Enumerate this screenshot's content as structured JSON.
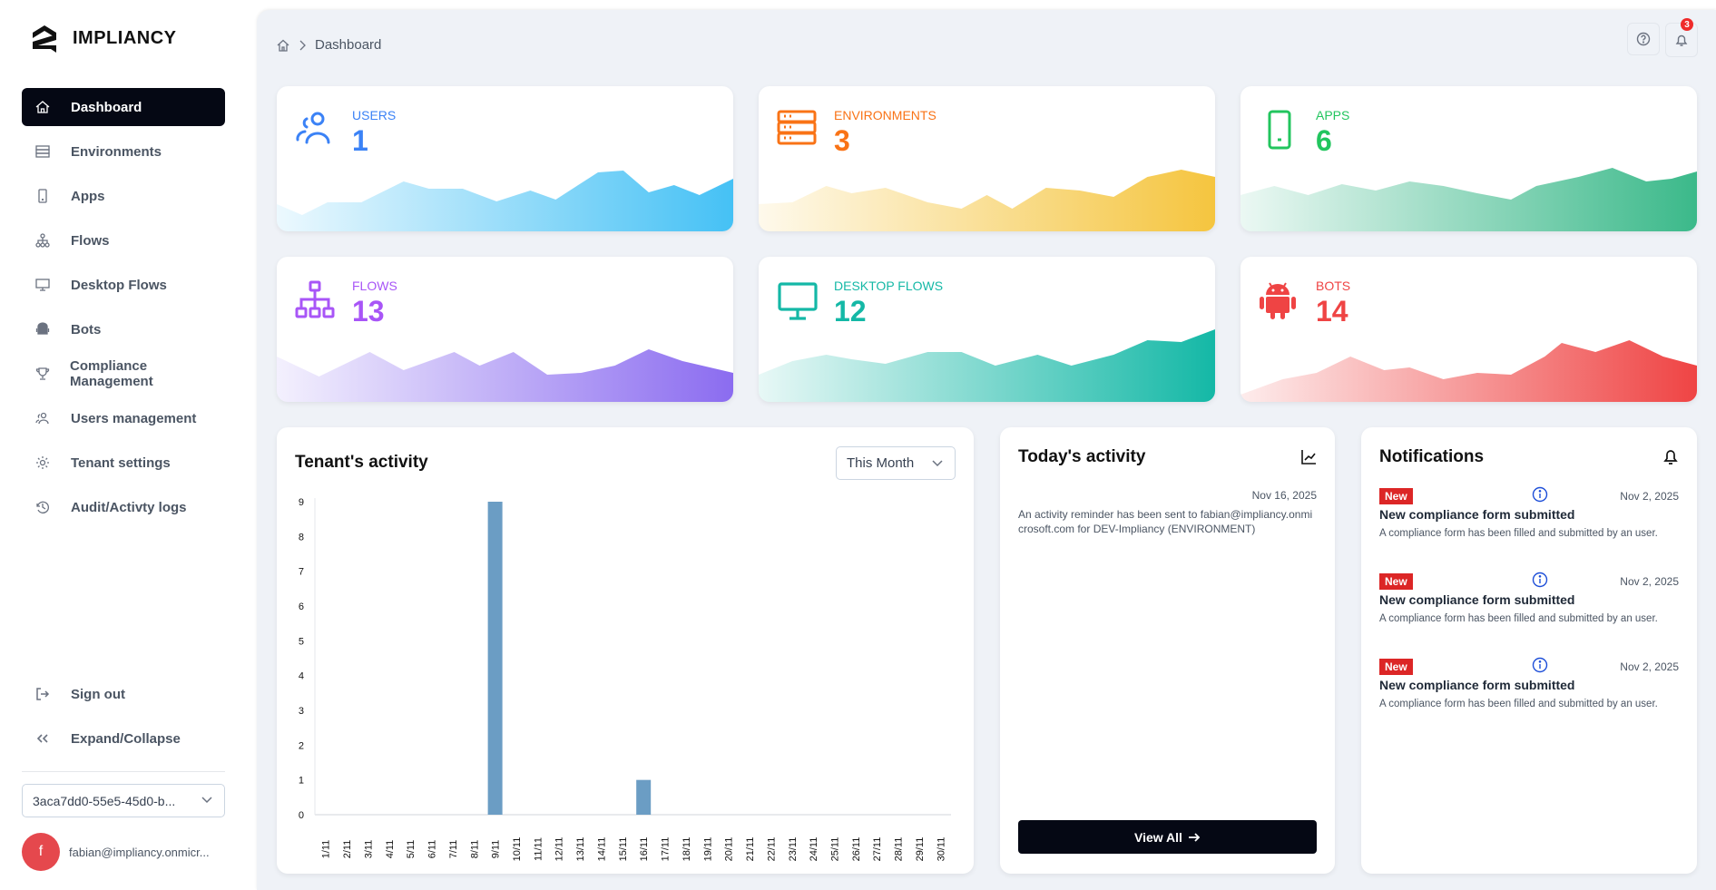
{
  "brand": "IMPLIANCY",
  "sidebar": {
    "items": [
      {
        "label": "Dashboard",
        "icon": "home-icon",
        "active": true
      },
      {
        "label": "Environments",
        "icon": "server-icon"
      },
      {
        "label": "Apps",
        "icon": "mobile-icon"
      },
      {
        "label": "Flows",
        "icon": "sitemap-icon"
      },
      {
        "label": "Desktop Flows",
        "icon": "monitor-icon"
      },
      {
        "label": "Bots",
        "icon": "android-icon"
      },
      {
        "label": "Compliance Management",
        "icon": "trophy-icon"
      },
      {
        "label": "Users management",
        "icon": "users-icon"
      },
      {
        "label": "Tenant settings",
        "icon": "gear-icon"
      },
      {
        "label": "Audit/Activty logs",
        "icon": "history-icon"
      }
    ],
    "sign_out": "Sign out",
    "expand": "Expand/Collapse",
    "tenant": "3aca7dd0-55e5-45d0-b...",
    "avatar_letter": "f",
    "email": "fabian@impliancy.onmicr..."
  },
  "breadcrumb": {
    "current": "Dashboard"
  },
  "notification_count": "3",
  "stats": [
    {
      "label": "USERS",
      "value": "1",
      "color": "#3b82f6",
      "wave": "#45c1f5"
    },
    {
      "label": "ENVIRONMENTS",
      "value": "3",
      "color": "#f97316",
      "wave": "#f5c53f"
    },
    {
      "label": "APPS",
      "value": "6",
      "color": "#22c55e",
      "wave": "#3bb98a"
    },
    {
      "label": "FLOWS",
      "value": "13",
      "color": "#a855f7",
      "wave": "#8b6cf0"
    },
    {
      "label": "DESKTOP FLOWS",
      "value": "12",
      "color": "#14b8a6",
      "wave": "#14b8a6"
    },
    {
      "label": "BOTS",
      "value": "14",
      "color": "#ef4444",
      "wave": "#ef4444"
    }
  ],
  "tenant_activity": {
    "title": "Tenant's activity",
    "period": "This Month"
  },
  "chart_data": {
    "type": "bar",
    "title": "Tenant's activity",
    "categories": [
      "1/11",
      "2/11",
      "3/11",
      "4/11",
      "5/11",
      "6/11",
      "7/11",
      "8/11",
      "9/11",
      "10/11",
      "11/11",
      "12/11",
      "13/11",
      "14/11",
      "15/11",
      "16/11",
      "17/11",
      "18/11",
      "19/11",
      "20/11",
      "21/11",
      "22/11",
      "23/11",
      "24/11",
      "25/11",
      "26/11",
      "27/11",
      "28/11",
      "29/11",
      "30/11"
    ],
    "values": [
      0,
      0,
      0,
      0,
      0,
      0,
      0,
      0,
      9,
      0,
      0,
      0,
      0,
      0,
      0,
      1,
      0,
      0,
      0,
      0,
      0,
      0,
      0,
      0,
      0,
      0,
      0,
      0,
      0,
      0
    ],
    "ylim": [
      0,
      9
    ],
    "yticks": [
      "0",
      "1",
      "2",
      "3",
      "4",
      "5",
      "6",
      "7",
      "8",
      "9"
    ],
    "color": "#6b9dc4",
    "xlabel": "",
    "ylabel": ""
  },
  "today": {
    "title": "Today's activity",
    "date": "Nov 16, 2025",
    "text": "An activity reminder has been sent to fabian@impliancy.onmicrosoft.com for DEV-Impliancy (ENVIRONMENT)",
    "view_all": "View All"
  },
  "notifications": {
    "title": "Notifications",
    "items": [
      {
        "badge": "New",
        "date": "Nov 2, 2025",
        "title": "New compliance form submitted",
        "desc": "A compliance form has been filled and submitted by an user."
      },
      {
        "badge": "New",
        "date": "Nov 2, 2025",
        "title": "New compliance form submitted",
        "desc": "A compliance form has been filled and submitted by an user."
      },
      {
        "badge": "New",
        "date": "Nov 2, 2025",
        "title": "New compliance form submitted",
        "desc": "A compliance form has been filled and submitted by an user."
      }
    ]
  }
}
